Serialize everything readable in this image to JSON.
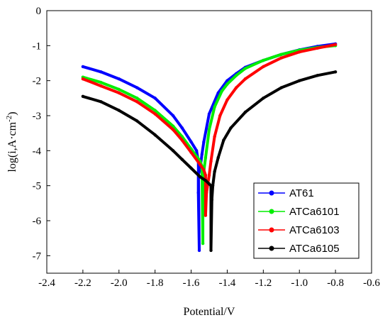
{
  "chart_data": {
    "type": "line",
    "title": "",
    "xlabel": "Potential/V",
    "ylabel": "log(i,A·cm",
    "ylabel_sup": "-2",
    "ylabel_close": ")",
    "xlim": [
      -2.4,
      -0.6
    ],
    "ylim": [
      -7.5,
      0
    ],
    "x_ticks": [
      -2.4,
      -2.2,
      -2.0,
      -1.8,
      -1.6,
      -1.4,
      -1.2,
      -1.0,
      -0.8,
      -0.6
    ],
    "x_tick_labels": [
      "-2.4",
      "-2.2",
      "-2.0",
      "-1.8",
      "-1.6",
      "-1.4",
      "-1.2",
      "-1.0",
      "-0.8",
      "-0.6"
    ],
    "y_ticks": [
      0,
      -1,
      -2,
      -3,
      -4,
      -5,
      -6,
      -7
    ],
    "y_tick_labels": [
      "0",
      "-1",
      "-2",
      "-3",
      "-4",
      "-5",
      "-6",
      "-7"
    ],
    "legend_position": "bottom-right",
    "grid": false,
    "series": [
      {
        "name": "AT61",
        "color": "#0000ff",
        "x": [
          -2.2,
          -2.1,
          -2.0,
          -1.9,
          -1.8,
          -1.7,
          -1.65,
          -1.6,
          -1.57,
          -1.56,
          -1.555,
          -1.56,
          -1.56,
          -1.55,
          -1.54,
          -1.53,
          -1.5,
          -1.45,
          -1.4,
          -1.35,
          -1.3,
          -1.2,
          -1.1,
          -1.0,
          -0.9,
          -0.8
        ],
        "y": [
          -1.6,
          -1.75,
          -1.95,
          -2.2,
          -2.5,
          -3.0,
          -3.35,
          -3.75,
          -4.0,
          -4.3,
          -6.85,
          -5.2,
          -4.7,
          -4.5,
          -4.1,
          -3.75,
          -2.95,
          -2.35,
          -2.0,
          -1.8,
          -1.62,
          -1.42,
          -1.25,
          -1.12,
          -1.02,
          -0.95
        ]
      },
      {
        "name": "ATCa6101",
        "color": "#00ee00",
        "x": [
          -2.2,
          -2.1,
          -2.0,
          -1.9,
          -1.8,
          -1.7,
          -1.65,
          -1.6,
          -1.55,
          -1.54,
          -1.535,
          -1.535,
          -1.53,
          -1.52,
          -1.5,
          -1.47,
          -1.43,
          -1.4,
          -1.35,
          -1.3,
          -1.2,
          -1.1,
          -1.0,
          -0.9,
          -0.8
        ],
        "y": [
          -1.9,
          -2.05,
          -2.25,
          -2.5,
          -2.85,
          -3.3,
          -3.6,
          -3.95,
          -4.3,
          -4.45,
          -6.65,
          -5.0,
          -4.6,
          -4.2,
          -3.4,
          -2.75,
          -2.3,
          -2.1,
          -1.85,
          -1.65,
          -1.42,
          -1.25,
          -1.13,
          -1.05,
          -1.0
        ]
      },
      {
        "name": "ATCa6103",
        "color": "#ff0000",
        "x": [
          -2.2,
          -2.1,
          -2.0,
          -1.9,
          -1.8,
          -1.7,
          -1.65,
          -1.6,
          -1.55,
          -1.53,
          -1.52,
          -1.52,
          -1.515,
          -1.5,
          -1.49,
          -1.47,
          -1.44,
          -1.4,
          -1.35,
          -1.3,
          -1.2,
          -1.1,
          -1.0,
          -0.9,
          -0.8
        ],
        "y": [
          -1.95,
          -2.15,
          -2.35,
          -2.6,
          -2.95,
          -3.4,
          -3.7,
          -4.05,
          -4.4,
          -4.55,
          -4.7,
          -5.85,
          -5.2,
          -4.7,
          -4.3,
          -3.6,
          -3.0,
          -2.55,
          -2.2,
          -1.95,
          -1.6,
          -1.35,
          -1.18,
          -1.07,
          -0.97
        ]
      },
      {
        "name": "ATCa6105",
        "color": "#000000",
        "x": [
          -2.2,
          -2.1,
          -2.0,
          -1.9,
          -1.8,
          -1.7,
          -1.65,
          -1.6,
          -1.55,
          -1.52,
          -1.5,
          -1.49,
          -1.49,
          -1.485,
          -1.48,
          -1.47,
          -1.45,
          -1.42,
          -1.38,
          -1.3,
          -1.2,
          -1.1,
          -1.0,
          -0.9,
          -0.8
        ],
        "y": [
          -2.45,
          -2.6,
          -2.85,
          -3.15,
          -3.55,
          -4.0,
          -4.25,
          -4.5,
          -4.75,
          -4.85,
          -4.95,
          -5.0,
          -6.85,
          -5.4,
          -5.0,
          -4.6,
          -4.2,
          -3.7,
          -3.35,
          -2.9,
          -2.5,
          -2.2,
          -2.0,
          -1.85,
          -1.75
        ]
      }
    ]
  }
}
